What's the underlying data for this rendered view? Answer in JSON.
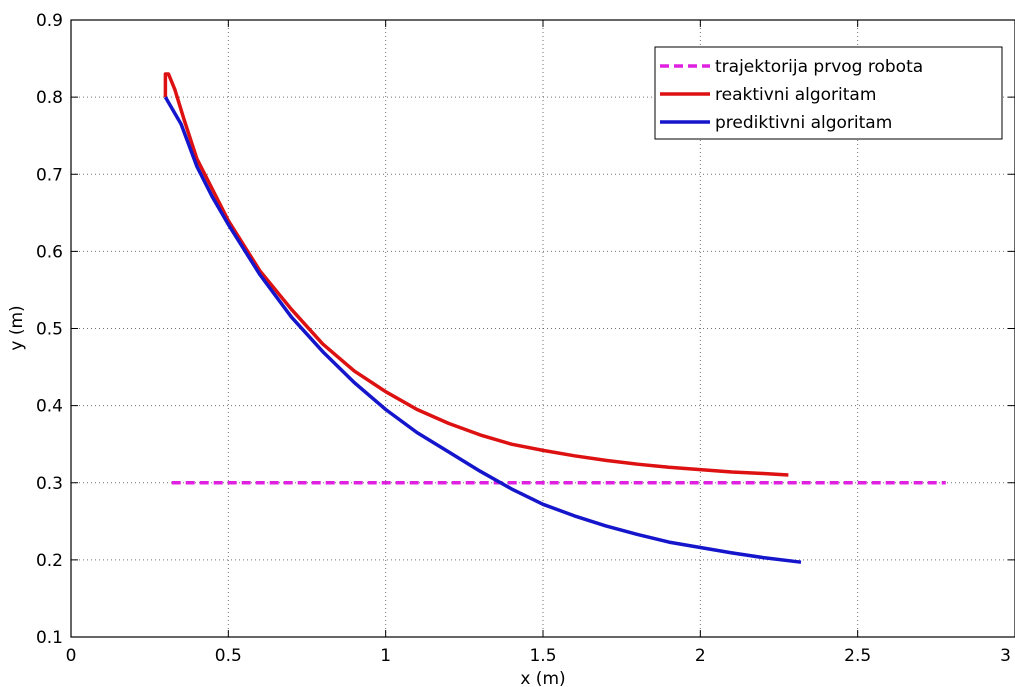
{
  "chart_data": {
    "type": "line",
    "title": "",
    "xlabel": "x (m)",
    "ylabel": "y (m)",
    "xlim": [
      0,
      3
    ],
    "ylim": [
      0.1,
      0.9
    ],
    "xticks": [
      0,
      0.5,
      1,
      1.5,
      2,
      2.5,
      3
    ],
    "xtick_labels": [
      "0",
      "0.5",
      "1",
      "1.5",
      "2",
      "2.5",
      "3"
    ],
    "yticks": [
      0.1,
      0.2,
      0.3,
      0.4,
      0.5,
      0.6,
      0.7,
      0.8,
      0.9
    ],
    "ytick_labels": [
      "0.1",
      "0.2",
      "0.3",
      "0.4",
      "0.5",
      "0.6",
      "0.7",
      "0.8",
      "0.9"
    ],
    "grid": true,
    "legend_position": "top-right",
    "series": [
      {
        "name": "trajektorija prvog robota",
        "color": "#e020e0",
        "style": "dashed",
        "x": [
          0.32,
          2.78
        ],
        "y": [
          0.3,
          0.3
        ]
      },
      {
        "name": "reaktivni algoritam",
        "color": "#dd1111",
        "style": "solid",
        "x": [
          0.3,
          0.3,
          0.31,
          0.33,
          0.36,
          0.4,
          0.45,
          0.5,
          0.6,
          0.7,
          0.8,
          0.9,
          1.0,
          1.1,
          1.2,
          1.3,
          1.4,
          1.5,
          1.6,
          1.7,
          1.8,
          1.9,
          2.0,
          2.1,
          2.2,
          2.28
        ],
        "y": [
          0.8,
          0.83,
          0.83,
          0.81,
          0.77,
          0.72,
          0.68,
          0.64,
          0.575,
          0.525,
          0.48,
          0.445,
          0.418,
          0.395,
          0.377,
          0.362,
          0.35,
          0.342,
          0.335,
          0.329,
          0.324,
          0.32,
          0.317,
          0.314,
          0.312,
          0.31
        ]
      },
      {
        "name": "prediktivni algoritam",
        "color": "#1515cc",
        "style": "solid",
        "x": [
          0.3,
          0.35,
          0.4,
          0.45,
          0.5,
          0.6,
          0.7,
          0.8,
          0.9,
          1.0,
          1.1,
          1.2,
          1.3,
          1.4,
          1.5,
          1.6,
          1.7,
          1.8,
          1.9,
          2.0,
          2.1,
          2.2,
          2.32
        ],
        "y": [
          0.8,
          0.765,
          0.71,
          0.67,
          0.635,
          0.57,
          0.515,
          0.47,
          0.43,
          0.395,
          0.365,
          0.34,
          0.315,
          0.292,
          0.272,
          0.257,
          0.244,
          0.233,
          0.223,
          0.216,
          0.209,
          0.203,
          0.197
        ]
      }
    ]
  }
}
